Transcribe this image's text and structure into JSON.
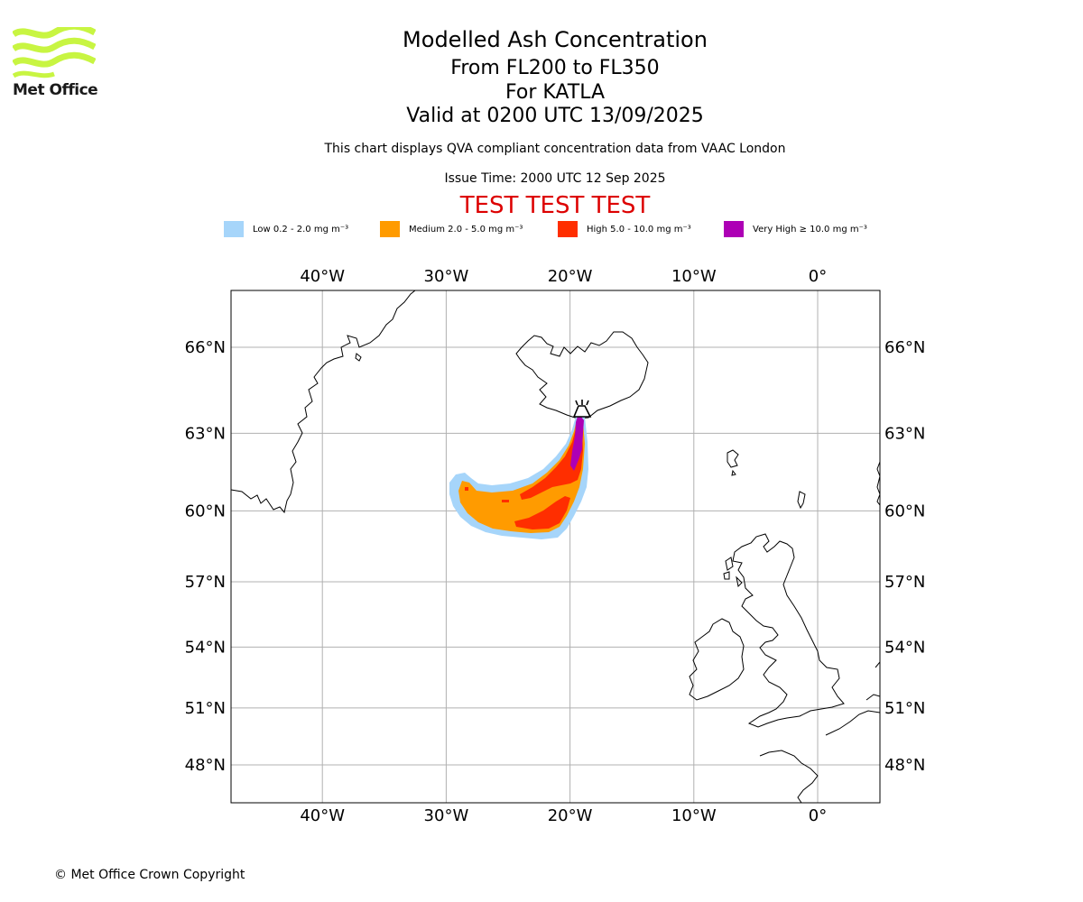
{
  "logo": {
    "text": "Met Office",
    "color": "#c8f542"
  },
  "title": {
    "line1": "Modelled Ash Concentration",
    "line2": "From FL200 to FL350",
    "line3": "For KATLA",
    "line4": "Valid at 0200 UTC 13/09/2025"
  },
  "subtitle": "This chart displays QVA compliant concentration data from VAAC London",
  "issue_time": "Issue Time: 2000 UTC 12 Sep 2025",
  "test_banner": "TEST TEST TEST",
  "legend": [
    {
      "label": "Low 0.2 - 2.0 mg m⁻³",
      "color": "#a6d5fa"
    },
    {
      "label": "Medium 2.0 - 5.0 mg m⁻³",
      "color": "#ff9b00"
    },
    {
      "label": "High 5.0 - 10.0 mg m⁻³",
      "color": "#ff2e00"
    },
    {
      "label": "Very High ≥ 10.0 mg m⁻³",
      "color": "#ad00b5"
    }
  ],
  "map": {
    "lon_range": [
      -47.5,
      5
    ],
    "lat_range": [
      46.5,
      68
    ],
    "lon_ticks": [
      {
        "value": -40,
        "label": "40°W"
      },
      {
        "value": -30,
        "label": "30°W"
      },
      {
        "value": -20,
        "label": "20°W"
      },
      {
        "value": -10,
        "label": "10°W"
      },
      {
        "value": 0,
        "label": "0°"
      }
    ],
    "lat_ticks": [
      {
        "value": 66,
        "label": "66°N"
      },
      {
        "value": 63,
        "label": "63°N"
      },
      {
        "value": 60,
        "label": "60°N"
      },
      {
        "value": 57,
        "label": "57°N"
      },
      {
        "value": 54,
        "label": "54°N"
      },
      {
        "value": 51,
        "label": "51°N"
      },
      {
        "value": 48,
        "label": "48°N"
      }
    ],
    "grid_color": "#b0b0b0",
    "volcano_icon": "volcano-icon"
  },
  "copyright": "© Met Office Crown Copyright"
}
